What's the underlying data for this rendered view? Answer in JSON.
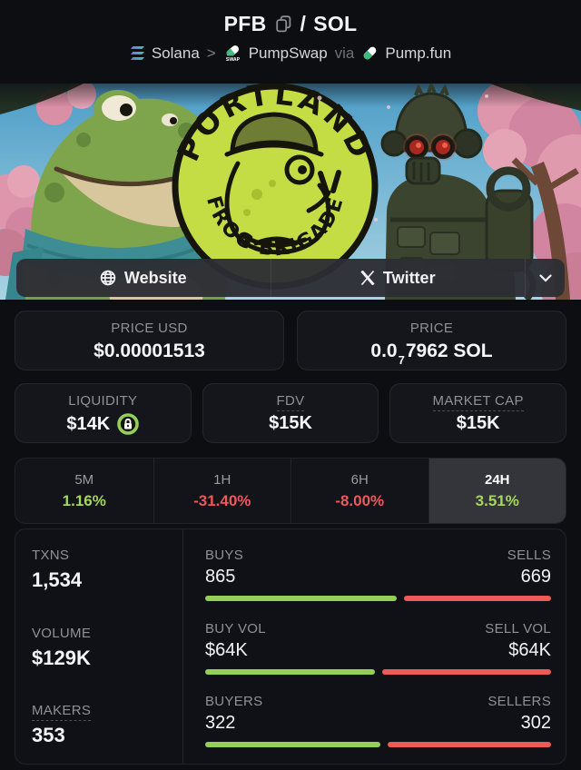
{
  "header": {
    "pair": {
      "base": "PFB",
      "separator": "/",
      "quote": "SOL"
    },
    "chain": {
      "network": "Solana",
      "arrow": ">",
      "dex": "PumpSwap",
      "dex_badge": "SWAP",
      "via_label": "via",
      "launchpad": "Pump.fun"
    }
  },
  "banner": {
    "logo_top_text": "PORTLAND",
    "logo_bottom_text": "FROG BRIGADE"
  },
  "links": {
    "website_label": "Website",
    "twitter_label": "Twitter"
  },
  "price_cards": {
    "usd": {
      "label": "PRICE USD",
      "value": "$0.00001513"
    },
    "native": {
      "label": "PRICE",
      "value_prefix": "0.0",
      "value_sub": "7",
      "value_rest": "7962 SOL"
    }
  },
  "metric_cards": {
    "liquidity": {
      "label": "LIQUIDITY",
      "value": "$14K"
    },
    "fdv": {
      "label": "FDV",
      "value": "$15K"
    },
    "market_cap": {
      "label": "MARKET CAP",
      "value": "$15K"
    }
  },
  "timeframes": [
    {
      "label": "5M",
      "change": "1.16%",
      "direction": "up",
      "selected": false
    },
    {
      "label": "1H",
      "change": "-31.40%",
      "direction": "down",
      "selected": false
    },
    {
      "label": "6H",
      "change": "-8.00%",
      "direction": "down",
      "selected": false
    },
    {
      "label": "24H",
      "change": "3.51%",
      "direction": "up",
      "selected": true
    }
  ],
  "stats": {
    "rows": [
      {
        "left_label": "TXNS",
        "left_value": "1,534",
        "buy_label": "BUYS",
        "sell_label": "SELLS",
        "buy_value": "865",
        "sell_value": "669",
        "buy_pct": 56.4
      },
      {
        "left_label": "VOLUME",
        "left_value": "$129K",
        "buy_label": "BUY VOL",
        "sell_label": "SELL VOL",
        "buy_value": "$64K",
        "sell_value": "$64K",
        "buy_pct": 50.0
      },
      {
        "left_label": "MAKERS",
        "left_value": "353",
        "buy_label": "BUYERS",
        "sell_label": "SELLERS",
        "buy_value": "322",
        "sell_value": "302",
        "buy_pct": 51.6
      }
    ]
  },
  "colors": {
    "green_text": "#a5d75c",
    "red_text": "#f1565c",
    "bar_green": "#95cf57",
    "bar_red": "#ee5a55",
    "lock_green": "#95cf57"
  }
}
